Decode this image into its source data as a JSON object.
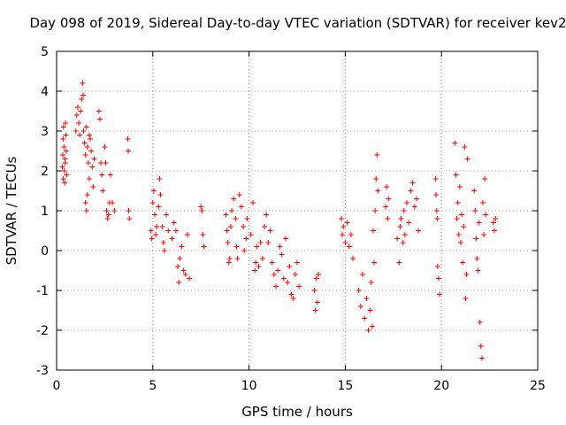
{
  "chart_data": {
    "type": "scatter",
    "title": "Day 098 of 2019, Sidereal Day-to-day VTEC variation (SDTVAR) for receiver kev2",
    "xlabel": "GPS time / hours",
    "ylabel": "SDTVAR / TECUs",
    "xlim": [
      0,
      25
    ],
    "ylim": [
      -3,
      5
    ],
    "x_ticks": [
      0,
      5,
      10,
      15,
      20,
      25
    ],
    "x_tick_labels": [
      "0",
      "5",
      "10",
      "15",
      "20",
      "25"
    ],
    "y_ticks": [
      -3,
      -2,
      -1,
      0,
      1,
      2,
      3,
      4,
      5
    ],
    "y_tick_labels": [
      "-3",
      "-2",
      "-1",
      "0",
      "1",
      "2",
      "3",
      "4",
      "5"
    ],
    "grid": true,
    "marker": "+",
    "color": "#ff0000",
    "series": [
      {
        "name": "SDTVAR",
        "points": [
          [
            0.3,
            2.1
          ],
          [
            0.32,
            2.4
          ],
          [
            0.34,
            2.8
          ],
          [
            0.36,
            3.1
          ],
          [
            0.38,
            2.6
          ],
          [
            0.4,
            2.0
          ],
          [
            0.42,
            1.7
          ],
          [
            0.44,
            2.3
          ],
          [
            0.46,
            3.2
          ],
          [
            0.48,
            2.9
          ],
          [
            0.5,
            2.5
          ],
          [
            0.52,
            1.9
          ],
          [
            0.35,
            1.8
          ],
          [
            0.45,
            2.2
          ],
          [
            1.0,
            3.0
          ],
          [
            1.05,
            3.4
          ],
          [
            1.1,
            3.6
          ],
          [
            1.15,
            3.2
          ],
          [
            1.2,
            2.9
          ],
          [
            1.25,
            3.5
          ],
          [
            1.3,
            3.8
          ],
          [
            1.35,
            4.2
          ],
          [
            1.38,
            3.9
          ],
          [
            1.4,
            3.0
          ],
          [
            1.45,
            2.7
          ],
          [
            1.5,
            2.4
          ],
          [
            1.55,
            3.1
          ],
          [
            1.6,
            2.6
          ],
          [
            1.65,
            2.2
          ],
          [
            1.7,
            1.8
          ],
          [
            1.75,
            2.8
          ],
          [
            1.8,
            2.5
          ],
          [
            1.85,
            2.1
          ],
          [
            1.9,
            1.6
          ],
          [
            1.5,
            1.2
          ],
          [
            1.55,
            1.0
          ],
          [
            1.6,
            1.4
          ],
          [
            1.7,
            2.9
          ],
          [
            1.95,
            2.3
          ],
          [
            2.2,
            3.5
          ],
          [
            2.25,
            3.3
          ],
          [
            2.3,
            2.2
          ],
          [
            2.35,
            1.9
          ],
          [
            2.4,
            1.5
          ],
          [
            2.5,
            2.6
          ],
          [
            2.55,
            2.2
          ],
          [
            2.6,
            1.0
          ],
          [
            2.65,
            0.8
          ],
          [
            2.7,
            0.9
          ],
          [
            2.75,
            1.2
          ],
          [
            2.8,
            1.9
          ],
          [
            2.9,
            1.2
          ],
          [
            3.0,
            1.0
          ],
          [
            3.7,
            2.8
          ],
          [
            3.72,
            2.5
          ],
          [
            3.75,
            1.0
          ],
          [
            3.78,
            0.8
          ],
          [
            4.9,
            0.5
          ],
          [
            4.95,
            0.3
          ],
          [
            5.0,
            1.2
          ],
          [
            5.05,
            1.5
          ],
          [
            5.1,
            0.9
          ],
          [
            5.15,
            0.4
          ],
          [
            5.2,
            0.6
          ],
          [
            5.3,
            1.1
          ],
          [
            5.35,
            1.8
          ],
          [
            5.4,
            1.4
          ],
          [
            5.5,
            0.6
          ],
          [
            5.55,
            0.2
          ],
          [
            5.6,
            0.0
          ],
          [
            5.7,
            0.9
          ],
          [
            5.8,
            0.5
          ],
          [
            6.0,
            0.3
          ],
          [
            6.1,
            0.7
          ],
          [
            6.2,
            0.5
          ],
          [
            6.3,
            -0.4
          ],
          [
            6.35,
            -0.8
          ],
          [
            6.4,
            -0.2
          ],
          [
            6.5,
            0.1
          ],
          [
            6.6,
            -0.5
          ],
          [
            6.7,
            -0.6
          ],
          [
            6.8,
            0.4
          ],
          [
            6.9,
            -0.7
          ],
          [
            7.5,
            1.1
          ],
          [
            7.55,
            1.0
          ],
          [
            7.6,
            0.4
          ],
          [
            7.65,
            0.1
          ],
          [
            8.8,
            0.9
          ],
          [
            8.85,
            0.5
          ],
          [
            8.9,
            0.2
          ],
          [
            8.95,
            -0.3
          ],
          [
            9.0,
            -0.2
          ],
          [
            9.05,
            0.6
          ],
          [
            9.1,
            1.0
          ],
          [
            9.2,
            1.3
          ],
          [
            9.3,
            0.8
          ],
          [
            9.35,
            0.1
          ],
          [
            9.4,
            -0.2
          ],
          [
            9.5,
            1.4
          ],
          [
            9.6,
            1.1
          ],
          [
            9.7,
            0.6
          ],
          [
            9.75,
            0.0
          ],
          [
            9.85,
            0.3
          ],
          [
            9.9,
            0.8
          ],
          [
            10.1,
            0.4
          ],
          [
            10.2,
            1.2
          ],
          [
            10.3,
            -0.5
          ],
          [
            10.35,
            -0.3
          ],
          [
            10.4,
            0.1
          ],
          [
            10.5,
            -0.4
          ],
          [
            10.6,
            0.2
          ],
          [
            10.7,
            -0.2
          ],
          [
            10.8,
            0.6
          ],
          [
            10.9,
            0.9
          ],
          [
            11.0,
            0.2
          ],
          [
            11.1,
            0.5
          ],
          [
            11.2,
            -0.3
          ],
          [
            11.3,
            -0.6
          ],
          [
            11.4,
            -0.9
          ],
          [
            11.5,
            -0.5
          ],
          [
            11.6,
            0.1
          ],
          [
            11.7,
            -0.1
          ],
          [
            11.8,
            -0.7
          ],
          [
            11.9,
            0.3
          ],
          [
            12.0,
            -0.8
          ],
          [
            12.1,
            -0.4
          ],
          [
            12.2,
            -1.1
          ],
          [
            12.3,
            -1.2
          ],
          [
            12.4,
            -0.6
          ],
          [
            12.5,
            -0.3
          ],
          [
            12.6,
            -0.9
          ],
          [
            13.4,
            -1.0
          ],
          [
            13.45,
            -1.5
          ],
          [
            13.5,
            -0.7
          ],
          [
            13.55,
            -1.3
          ],
          [
            13.6,
            -0.6
          ],
          [
            14.8,
            0.8
          ],
          [
            14.85,
            0.4
          ],
          [
            14.9,
            0.6
          ],
          [
            15.0,
            0.2
          ],
          [
            15.1,
            0.7
          ],
          [
            15.2,
            0.1
          ],
          [
            15.3,
            0.4
          ],
          [
            15.4,
            -0.2
          ],
          [
            15.7,
            -1.0
          ],
          [
            15.8,
            -1.4
          ],
          [
            15.9,
            -0.6
          ],
          [
            16.0,
            -1.7
          ],
          [
            16.1,
            -1.2
          ],
          [
            16.2,
            -2.0
          ],
          [
            16.3,
            -1.5
          ],
          [
            16.35,
            -0.8
          ],
          [
            16.4,
            -1.9
          ],
          [
            16.45,
            0.5
          ],
          [
            16.5,
            -0.3
          ],
          [
            16.55,
            1.0
          ],
          [
            16.6,
            1.8
          ],
          [
            16.65,
            2.4
          ],
          [
            16.7,
            1.5
          ],
          [
            17.1,
            1.1
          ],
          [
            17.15,
            1.6
          ],
          [
            17.2,
            0.8
          ],
          [
            17.25,
            1.3
          ],
          [
            17.7,
            0.3
          ],
          [
            17.8,
            -0.3
          ],
          [
            17.85,
            0.6
          ],
          [
            17.9,
            0.8
          ],
          [
            18.0,
            0.2
          ],
          [
            18.05,
            1.0
          ],
          [
            18.1,
            0.4
          ],
          [
            18.2,
            1.2
          ],
          [
            18.3,
            0.7
          ],
          [
            18.4,
            1.5
          ],
          [
            18.5,
            1.7
          ],
          [
            18.6,
            1.1
          ],
          [
            18.7,
            1.3
          ],
          [
            18.8,
            0.5
          ],
          [
            19.7,
            1.8
          ],
          [
            19.72,
            1.4
          ],
          [
            19.75,
            1.0
          ],
          [
            19.78,
            0.8
          ],
          [
            19.8,
            -0.4
          ],
          [
            19.85,
            -0.7
          ],
          [
            19.9,
            -1.1
          ],
          [
            20.7,
            2.7
          ],
          [
            20.75,
            1.9
          ],
          [
            20.8,
            0.8
          ],
          [
            20.85,
            1.2
          ],
          [
            20.9,
            0.4
          ],
          [
            20.95,
            1.6
          ],
          [
            21.0,
            0.2
          ],
          [
            21.05,
            0.9
          ],
          [
            21.1,
            -0.3
          ],
          [
            21.15,
            0.6
          ],
          [
            21.2,
            2.6
          ],
          [
            21.25,
            -1.2
          ],
          [
            21.3,
            -0.6
          ],
          [
            21.35,
            2.3
          ],
          [
            21.7,
            1.5
          ],
          [
            21.75,
            1.0
          ],
          [
            21.8,
            0.3
          ],
          [
            21.85,
            -0.2
          ],
          [
            21.9,
            -0.5
          ],
          [
            21.95,
            0.7
          ],
          [
            22.0,
            -1.8
          ],
          [
            22.05,
            -2.4
          ],
          [
            22.1,
            -2.7
          ],
          [
            22.15,
            1.2
          ],
          [
            22.2,
            0.4
          ],
          [
            22.25,
            1.8
          ],
          [
            22.3,
            0.9
          ],
          [
            22.7,
            0.7
          ],
          [
            22.75,
            0.5
          ],
          [
            22.8,
            0.8
          ]
        ]
      }
    ]
  }
}
